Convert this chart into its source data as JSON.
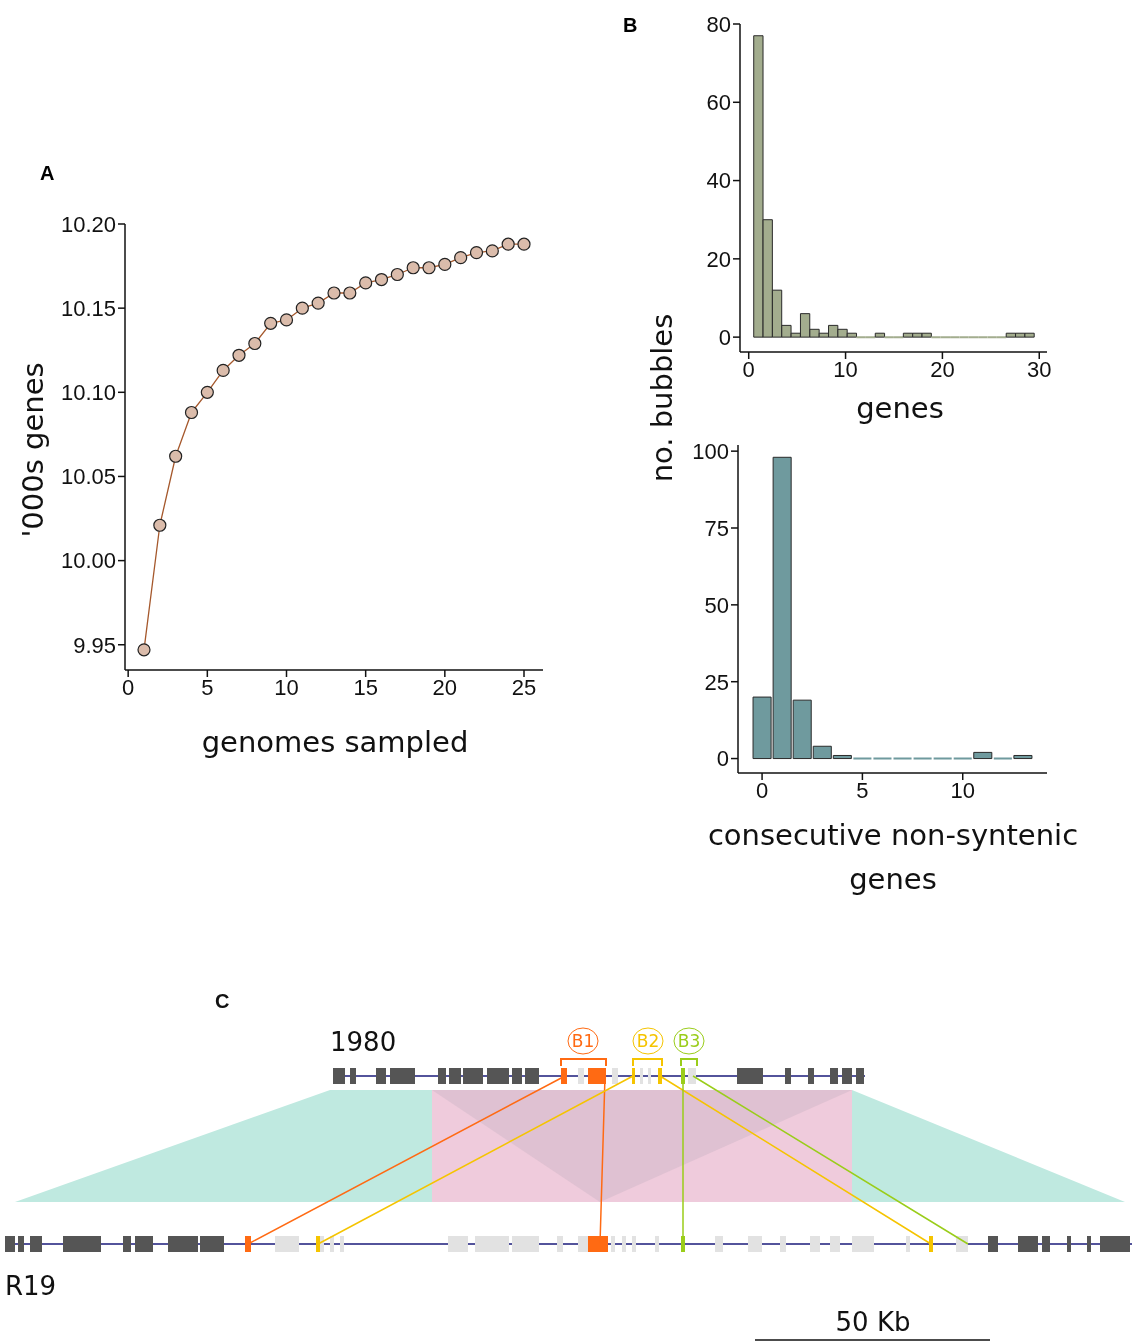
{
  "chart_data": [
    {
      "type": "line",
      "title": "A",
      "xlabel": "genomes sampled",
      "ylabel": "'000s genes",
      "marker": "circle",
      "line_style": "solid",
      "x": [
        1,
        2,
        3,
        4,
        5,
        6,
        7,
        8,
        9,
        10,
        11,
        12,
        13,
        14,
        15,
        16,
        17,
        18,
        19,
        20,
        21,
        22,
        23,
        24,
        25
      ],
      "series": [
        {
          "color": "#a5582c",
          "values": [
            9.947,
            10.021,
            10.062,
            10.088,
            10.1,
            10.113,
            10.122,
            10.129,
            10.141,
            10.143,
            10.15,
            10.153,
            10.159,
            10.159,
            10.165,
            10.167,
            10.17,
            10.174,
            10.174,
            10.176,
            10.18,
            10.183,
            10.184,
            10.188,
            10.188
          ]
        }
      ],
      "xlim": [
        -0.2,
        26.2
      ],
      "xticks": [
        0,
        5,
        10,
        15,
        20,
        25
      ],
      "ylim": [
        9.935,
        10.2
      ],
      "yticks": [
        {
          "value": 10.2,
          "label": "10.20"
        },
        10.15,
        {
          "value": 10.1,
          "label": "10.10"
        },
        10.05,
        {
          "value": 10.0,
          "label": "10.00"
        },
        9.95
      ]
    },
    {
      "type": "histogram",
      "title": "B",
      "xlabel": "genes",
      "ylabel": "no. bubbles",
      "color": "#a3ad8e",
      "bins": [
        0.52,
        1.48,
        2.45,
        3.41,
        4.38,
        5.34,
        6.31,
        7.28,
        8.24,
        9.21,
        10.17,
        11.14,
        12.1,
        13.07,
        14.03,
        15.0,
        15.97,
        16.93,
        17.9,
        18.86,
        19.83,
        20.79,
        21.76,
        22.72,
        23.69,
        24.66,
        25.62,
        26.59,
        27.55,
        28.52,
        29.48
      ],
      "values": [
        77,
        30,
        12,
        3,
        1,
        6,
        2,
        1,
        3,
        2,
        1,
        0,
        0,
        1,
        0,
        0,
        1,
        1,
        1,
        0,
        0,
        0,
        0,
        0,
        0,
        0,
        0,
        1,
        1,
        1
      ],
      "xlim": [
        -0.9,
        30.8
      ],
      "xticks": [
        0,
        10,
        20,
        30
      ],
      "ylim": [
        -3.8,
        80
      ],
      "yticks": [
        0,
        20,
        40,
        60,
        80
      ]
    },
    {
      "type": "histogram",
      "xlabel": "consecutive non-syntenic genes",
      "color": "#6f9a9e",
      "bins": [
        -0.5,
        0.5,
        1.5,
        2.5,
        3.5,
        4.5,
        5.5,
        6.5,
        7.5,
        8.5,
        9.5,
        10.5,
        11.5,
        12.5,
        13.5
      ],
      "values": [
        20,
        98,
        19,
        4,
        1,
        0,
        0,
        0,
        0,
        0,
        0,
        2,
        0,
        1
      ],
      "xlim": [
        -1.2,
        14.2
      ],
      "xticks": [
        0,
        5,
        10
      ],
      "ylim": [
        -4.7,
        102
      ],
      "yticks": [
        0,
        25,
        50,
        75,
        100
      ]
    },
    {
      "type": "other",
      "title": "C",
      "annotations": [
        "1980",
        "B1",
        "B2",
        "B3",
        "R19",
        "50 Kb"
      ]
    }
  ]
}
